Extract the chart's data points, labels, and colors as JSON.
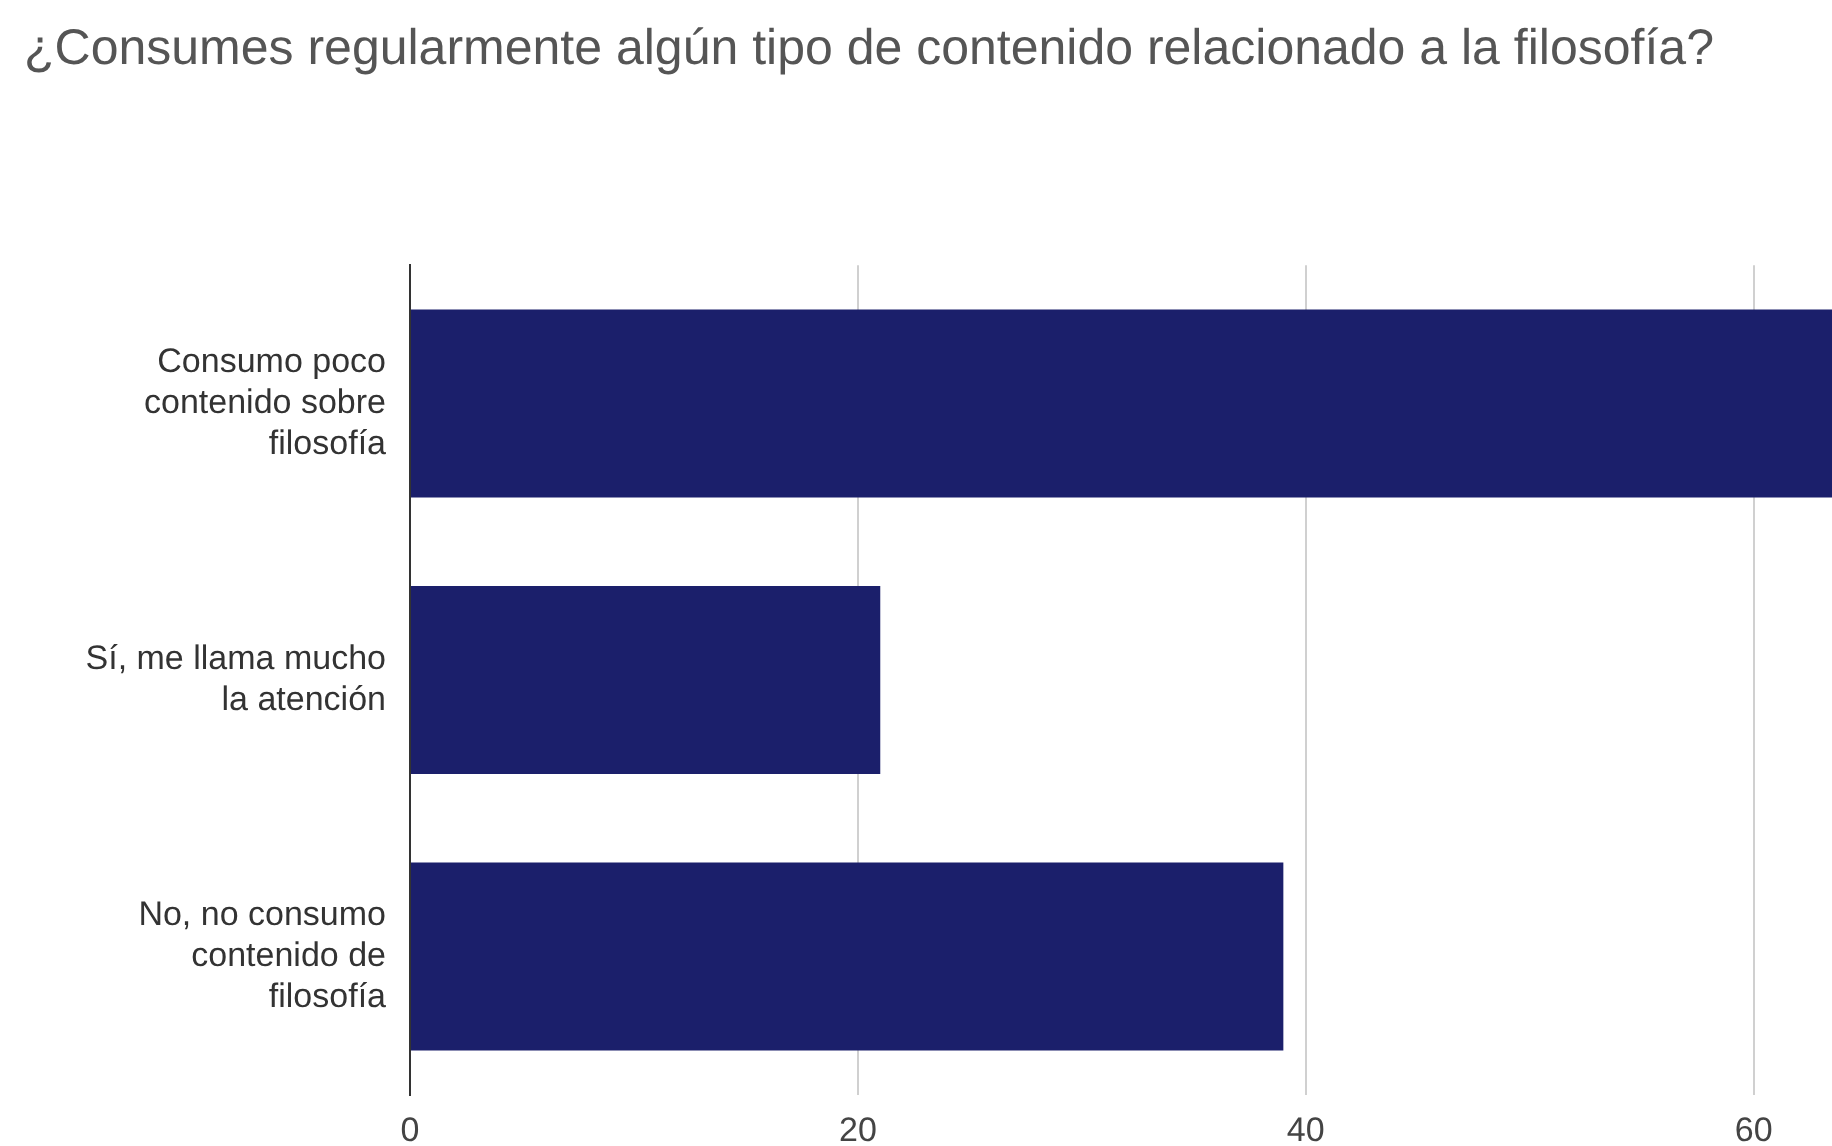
{
  "chart_data": {
    "type": "bar",
    "orientation": "horizontal",
    "title": "¿Consumes regularmente algún tipo de contenido relacionado a la filosofía?",
    "categories": [
      "Consumo poco contenido sobre filosofía",
      "Sí, me llama mucho la atención",
      "No, no consumo contenido de filosofía"
    ],
    "values": [
      63.5,
      21,
      39
    ],
    "color": "#1b1f6b",
    "xlim": [
      0,
      63.5
    ],
    "xticks": [
      0,
      20,
      40,
      60
    ],
    "grid": "x",
    "legend": false
  }
}
